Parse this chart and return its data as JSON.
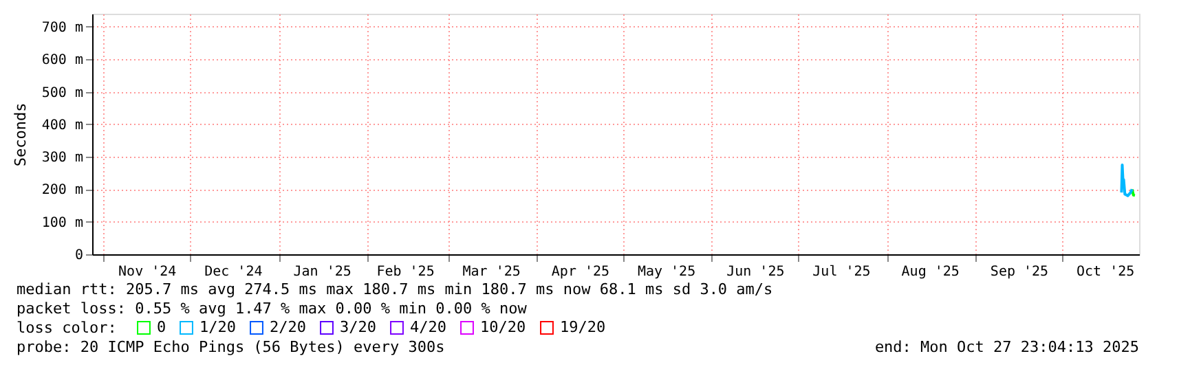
{
  "chart_data": {
    "type": "line",
    "ylabel": "Seconds",
    "x": [
      "2025-10-21T20:00",
      "2025-10-22T02:00",
      "2025-10-22T08:00",
      "2025-10-22T14:00",
      "2025-10-23T00:00",
      "2025-10-24T00:00",
      "2025-10-25T00:00",
      "2025-10-25T12:00",
      "2025-10-26T00:00",
      "2025-10-26T12:00"
    ],
    "series": [
      {
        "name": "0",
        "color": "#00ff00",
        "values": [
          null,
          null,
          null,
          null,
          null,
          null,
          null,
          200,
          182,
          181
        ]
      },
      {
        "name": "1/20",
        "color": "#00b8ff",
        "values": [
          190,
          275,
          230,
          230,
          185,
          180,
          190,
          200,
          null,
          null
        ]
      },
      {
        "name": "2/20",
        "color": "#0059ff",
        "values": [
          null,
          null,
          null,
          null,
          null,
          null,
          null,
          null,
          null,
          null
        ]
      },
      {
        "name": "3/20",
        "color": "#5e00ff",
        "values": [
          null,
          null,
          null,
          null,
          null,
          null,
          null,
          null,
          null,
          null
        ]
      },
      {
        "name": "4/20",
        "color": "#7e00ff",
        "values": [
          null,
          null,
          null,
          null,
          null,
          null,
          null,
          null,
          null,
          null
        ]
      },
      {
        "name": "10/20",
        "color": "#dd00ff",
        "values": [
          null,
          null,
          null,
          null,
          null,
          null,
          null,
          null,
          null,
          null
        ]
      },
      {
        "name": "19/20",
        "color": "#ff0000",
        "values": [
          null,
          null,
          null,
          null,
          null,
          null,
          null,
          null,
          null,
          null
        ]
      }
    ],
    "legend_title": "loss color:",
    "legend": "bottom",
    "xlim": [
      "2024-10-28T00:00",
      "2025-10-27T23:04"
    ],
    "xticks": [
      {
        "value": "2024-11-01",
        "label": null
      },
      {
        "value": "2024-11-16",
        "label": "Nov '24"
      },
      {
        "value": "2024-12-01",
        "label": null
      },
      {
        "value": "2024-12-16",
        "label": "Dec '24"
      },
      {
        "value": "2025-01-01",
        "label": null
      },
      {
        "value": "2025-01-16",
        "label": "Jan '25"
      },
      {
        "value": "2025-02-01",
        "label": null
      },
      {
        "value": "2025-02-14",
        "label": "Feb '25"
      },
      {
        "value": "2025-03-01",
        "label": null
      },
      {
        "value": "2025-03-16",
        "label": "Mar '25"
      },
      {
        "value": "2025-04-01",
        "label": null
      },
      {
        "value": "2025-04-16",
        "label": "Apr '25"
      },
      {
        "value": "2025-05-01",
        "label": null
      },
      {
        "value": "2025-05-16",
        "label": "May '25"
      },
      {
        "value": "2025-06-01",
        "label": null
      },
      {
        "value": "2025-06-16",
        "label": "Jun '25"
      },
      {
        "value": "2025-07-01",
        "label": null
      },
      {
        "value": "2025-07-16",
        "label": "Jul '25"
      },
      {
        "value": "2025-08-01",
        "label": null
      },
      {
        "value": "2025-08-16",
        "label": "Aug '25"
      },
      {
        "value": "2025-09-01",
        "label": null
      },
      {
        "value": "2025-09-16",
        "label": "Sep '25"
      },
      {
        "value": "2025-10-01",
        "label": null
      },
      {
        "value": "2025-10-16",
        "label": "Oct '25"
      }
    ],
    "ylim": [
      0,
      740
    ],
    "yticks": [
      {
        "value": 0,
        "label": "0"
      },
      {
        "value": 100,
        "label": "100 m"
      },
      {
        "value": 200,
        "label": "200 m"
      },
      {
        "value": 300,
        "label": "300 m"
      },
      {
        "value": 400,
        "label": "400 m"
      },
      {
        "value": 500,
        "label": "500 m"
      },
      {
        "value": 600,
        "label": "600 m"
      },
      {
        "value": 700,
        "label": "700 m"
      }
    ],
    "grid": true,
    "annotations": [
      "median rtt:  205.7 ms avg  274.5 ms max  180.7 ms min  180.7 ms now  68.1 ms sd  3.0   am/s",
      "packet loss: 0.55 % avg  1.47 % max  0.00 % min  0.00 % now",
      "probe:       20 ICMP Echo Pings (56 Bytes) every 300s",
      "end: Mon Oct 27 23:04:13 2025"
    ]
  }
}
